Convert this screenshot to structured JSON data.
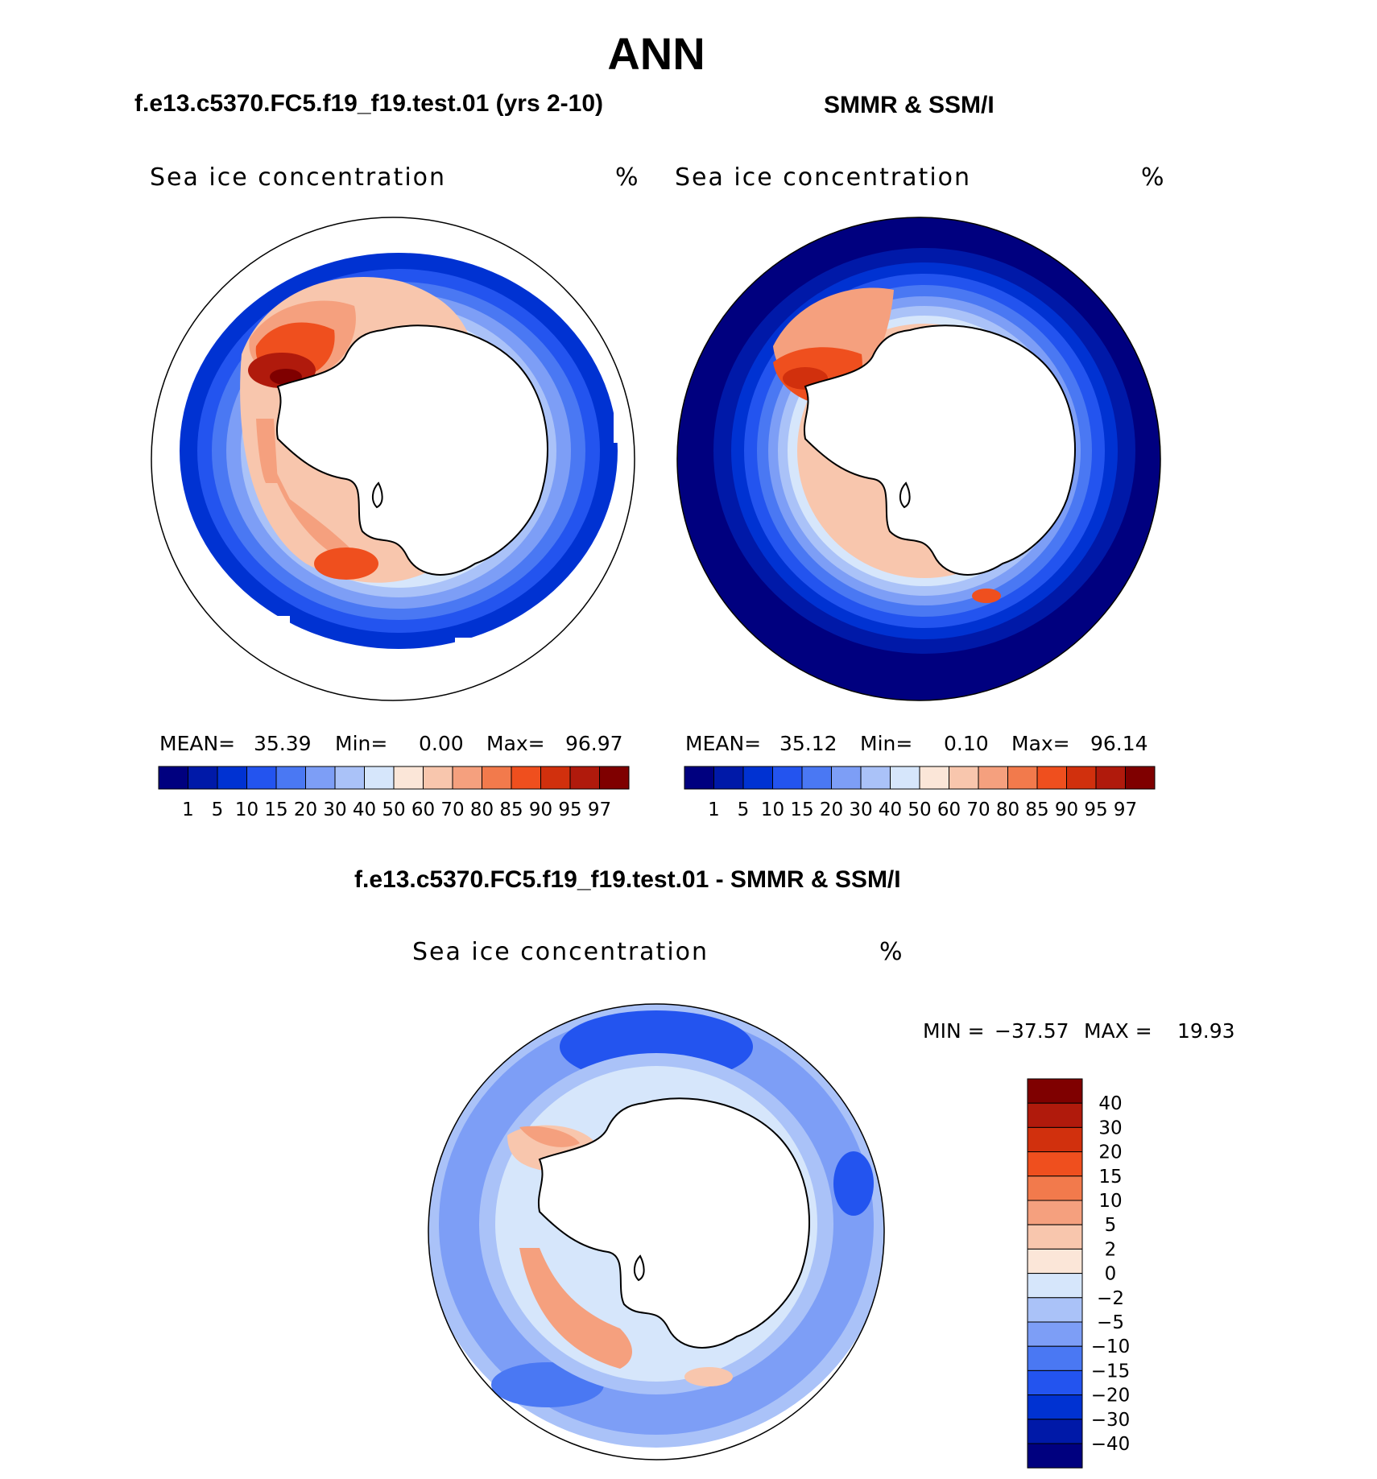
{
  "title": "ANN",
  "panels": [
    {
      "title": "f.e13.c5370.FC5.f19_f19.test.01 (yrs 2-10)",
      "variable": "Sea ice concentration",
      "units": "%",
      "stats": {
        "mean_label": "MEAN=",
        "mean": "35.39",
        "min_label": "Min=",
        "min": "0.00",
        "max_label": "Max=",
        "max": "96.97"
      }
    },
    {
      "title": "SMMR & SSM/I",
      "variable": "Sea ice concentration",
      "units": "%",
      "stats": {
        "mean_label": "MEAN=",
        "mean": "35.12",
        "min_label": "Min=",
        "min": "0.10",
        "max_label": "Max=",
        "max": "96.14"
      }
    },
    {
      "title": "f.e13.c5370.FC5.f19_f19.test.01 - SMMR & SSM/I",
      "variable": "Sea ice concentration",
      "units": "%",
      "stats": {
        "min_label": "MIN =",
        "min": "−37.57",
        "max_label": "MAX =",
        "max": "19.93"
      }
    }
  ],
  "colorbar_levels": [
    "1",
    "5",
    "10",
    "15",
    "20",
    "30",
    "40",
    "50",
    "60",
    "70",
    "80",
    "85",
    "90",
    "95",
    "97"
  ],
  "colorbar_colors": [
    "#00007f",
    "#0019a8",
    "#0032d2",
    "#2354ef",
    "#4a78f3",
    "#7d9ef6",
    "#aac2f8",
    "#d6e6fb",
    "#fbe6d8",
    "#f8c6ad",
    "#f5a07e",
    "#f27a4c",
    "#ef4f1e",
    "#d1300d",
    "#b01a0c",
    "#7f0000"
  ],
  "diff_levels": [
    "40",
    "30",
    "20",
    "15",
    "10",
    "5",
    "2",
    "0",
    "−2",
    "−5",
    "−10",
    "−15",
    "−20",
    "−30",
    "−40"
  ],
  "diff_colors": [
    "#7f0000",
    "#b01a0c",
    "#d1300d",
    "#ef4f1e",
    "#f27a4c",
    "#f5a07e",
    "#f8c6ad",
    "#fbe6d8",
    "#d6e6fb",
    "#aac2f8",
    "#7d9ef6",
    "#4a78f3",
    "#2354ef",
    "#0032d2",
    "#0019a8",
    "#00007f"
  ]
}
